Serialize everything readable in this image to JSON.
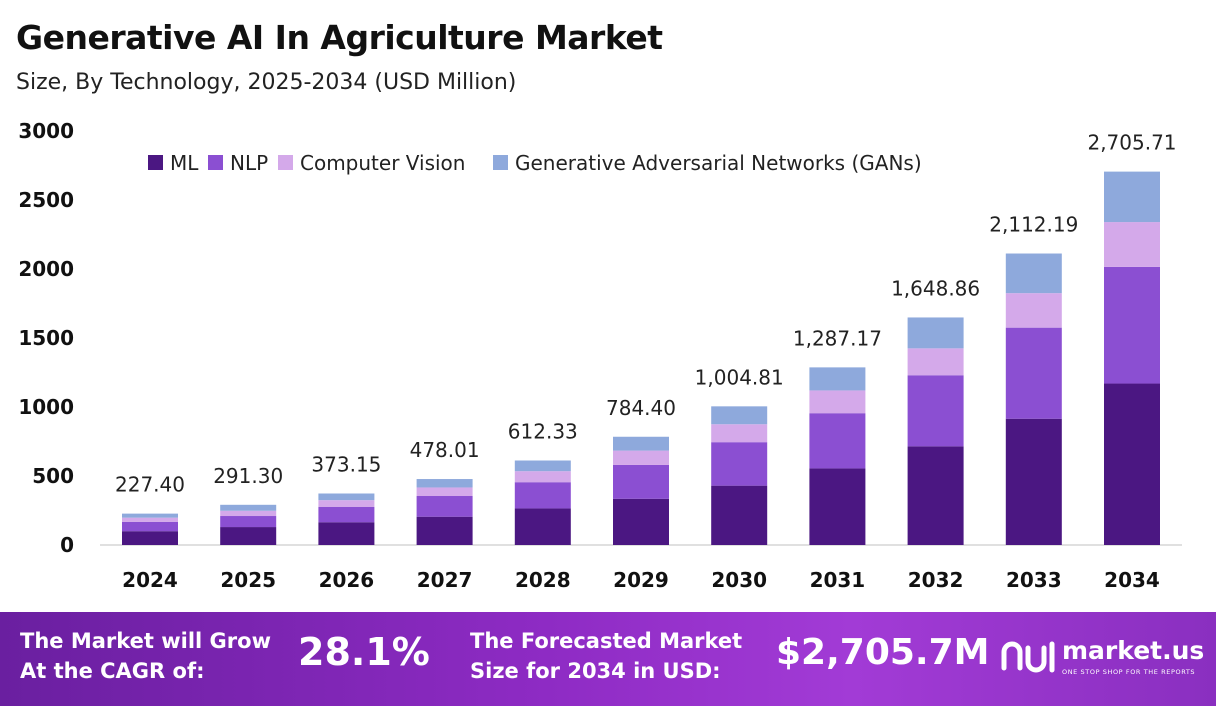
{
  "header": {
    "title": "Generative AI In Agriculture Market",
    "subtitle": "Size, By Technology, 2025-2034 (USD Million)"
  },
  "chart_data": {
    "type": "bar",
    "stacked": true,
    "categories": [
      "2024",
      "2025",
      "2026",
      "2027",
      "2028",
      "2029",
      "2030",
      "2031",
      "2032",
      "2033",
      "2034"
    ],
    "series": [
      {
        "name": "ML",
        "color": "#4b1782",
        "values": [
          100,
          130,
          165,
          205,
          265,
          335,
          430,
          555,
          715,
          915,
          1170
        ]
      },
      {
        "name": "NLP",
        "color": "#8b4fd2",
        "values": [
          68,
          80,
          112,
          150,
          190,
          245,
          315,
          400,
          515,
          660,
          845
        ]
      },
      {
        "name": "Computer Vision",
        "color": "#d4a9ea",
        "values": [
          30,
          38,
          48,
          62,
          80,
          104,
          130,
          165,
          195,
          250,
          325
        ]
      },
      {
        "name": "Generative Adversarial Networks (GANs)",
        "color": "#8ea9dc",
        "values": [
          29.4,
          43.3,
          48.15,
          61.01,
          77.33,
          100.4,
          129.81,
          167.17,
          223.86,
          287.19,
          365.71
        ]
      }
    ],
    "totals": [
      227.4,
      291.3,
      373.15,
      478.01,
      612.33,
      784.4,
      1004.81,
      1287.17,
      1648.86,
      2112.19,
      2705.71
    ],
    "total_labels": [
      "227.40",
      "291.30",
      "373.15",
      "478.01",
      "612.33",
      "784.40",
      "1,004.81",
      "1,287.17",
      "1,648.86",
      "2,112.19",
      "2,705.71"
    ],
    "y_ticks": [
      "0",
      "500",
      "1000",
      "1500",
      "2000",
      "2500",
      "3000"
    ],
    "ylim": [
      0,
      3000
    ],
    "grid": false,
    "legend_position": "top"
  },
  "footer": {
    "cagr_label_line1": "The Market will Grow",
    "cagr_label_line2": "At the CAGR of:",
    "cagr_value": "28.1%",
    "forecast_label_line1": "The Forecasted Market",
    "forecast_label_line2": "Size for 2034 in USD:",
    "forecast_value": "$2,705.7M",
    "brand_name": "market.us",
    "brand_tagline": "ONE STOP SHOP FOR THE REPORTS"
  }
}
